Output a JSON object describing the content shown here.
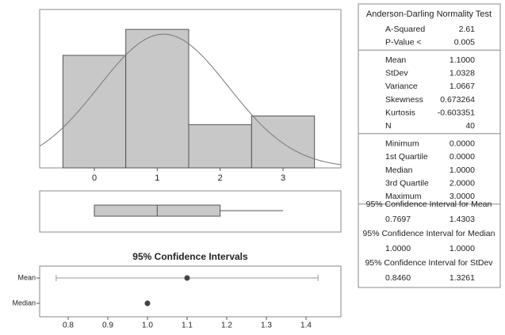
{
  "chart_data": [
    {
      "type": "histogram",
      "bins": [
        -0.5,
        0.5,
        1.5,
        2.5,
        3.5
      ],
      "counts": [
        13,
        16,
        5,
        6
      ],
      "color": "#c8c8c8",
      "xlim": [
        -0.87,
        3.92
      ],
      "xticks": [
        0,
        1,
        2,
        3
      ],
      "ylim": [
        0,
        18.3
      ]
    },
    {
      "type": "ci",
      "title": "95% Confidence Intervals",
      "categories": [
        "Mean",
        "Median"
      ],
      "xlim": [
        0.728,
        1.488
      ],
      "xticks": [
        0.8,
        0.9,
        {
          "value": 1.0,
          "label": "1.0"
        },
        1.1,
        1.2,
        1.3,
        1.4
      ]
    }
  ],
  "summary": {
    "title": "Anderson-Darling Normality Test",
    "sections": [
      [
        [
          "A-Squared",
          "2.61"
        ],
        [
          "P-Value <",
          "0.005"
        ]
      ],
      [
        [
          "Mean",
          "1.1000"
        ],
        [
          "StDev",
          "1.0328"
        ],
        [
          "Variance",
          "1.0667"
        ],
        [
          "Skewness",
          "0.673264"
        ],
        [
          "Kurtosis",
          "-0.603351"
        ],
        [
          "N",
          "40"
        ]
      ],
      [
        [
          "Minimum",
          "0.0000"
        ],
        [
          "1st Quartile",
          "0.0000"
        ],
        [
          "Median",
          "1.0000"
        ],
        [
          "3rd Quartile",
          "2.0000"
        ],
        [
          "Maximum",
          "3.0000"
        ]
      ]
    ],
    "intervals": [
      {
        "label": "95% Confidence Interval for Mean",
        "low": "0.7697",
        "high": "1.4303"
      },
      {
        "label": "95% Confidence Interval for Median",
        "low": "1.0000",
        "high": "1.0000"
      },
      {
        "label": "95% Confidence Interval for StDev",
        "low": "0.8460",
        "high": "1.3261"
      }
    ]
  }
}
